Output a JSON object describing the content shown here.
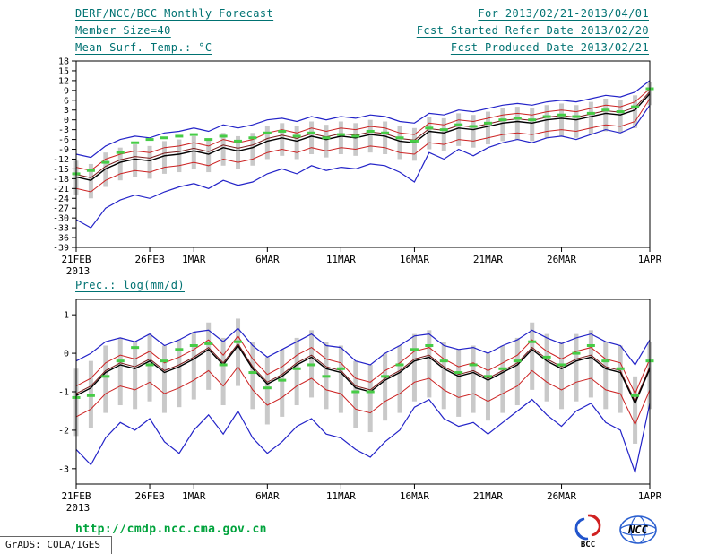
{
  "header": {
    "title": "DERF/NCC/BCC Monthly Forecast",
    "member_size": "Member Size=40",
    "temp_label": "Mean Surf. Temp.: °C",
    "for_range": "For 2013/02/21-2013/04/01",
    "refer_date": "Fcst Started Refer Date 2013/02/20",
    "produced_date": "Fcst Produced Date 2013/02/21"
  },
  "footer": {
    "url": "http://cmdp.ncc.cma.gov.cn",
    "grads_credit": "GrADS: COLA/IGES",
    "bcc_text": "BCC",
    "ncc_text": "NCC"
  },
  "colors": {
    "header_text": "#007272",
    "url_green": "#00a33c",
    "line_blue": "#2323c8",
    "line_red": "#cc2222",
    "line_maroon": "#7a1a1a",
    "line_black": "#000000",
    "obs_green": "#46cc46",
    "bar_gray": "#c9c9c9"
  },
  "chart_data": [
    {
      "type": "line",
      "title": "Mean Surf. Temp.: °C",
      "x_tick_labels": [
        "21FEB",
        "26FEB",
        "1MAR",
        "6MAR",
        "11MAR",
        "16MAR",
        "21MAR",
        "26MAR",
        "1APR"
      ],
      "x_tick_positions": [
        0,
        5,
        8,
        13,
        18,
        23,
        28,
        33,
        39
      ],
      "x_year_label": "2013",
      "n_points": 40,
      "ylim": [
        -39,
        18
      ],
      "y_ticks": [
        18,
        15,
        12,
        9,
        6,
        3,
        0,
        -3,
        -6,
        -9,
        -12,
        -15,
        -18,
        -21,
        -24,
        -27,
        -30,
        -33,
        -36,
        -39
      ],
      "bar_color": "#c9c9c9",
      "bars": {
        "name": "member-spread",
        "high": [
          -12.5,
          -13.5,
          -10,
          -8.5,
          -7.5,
          -8,
          -6.5,
          -6,
          -5,
          -6,
          -4,
          -5,
          -4,
          -2,
          -1,
          -2,
          -0.5,
          -1.5,
          -0.5,
          -1,
          0,
          -0.5,
          -2,
          -2.5,
          1,
          0.5,
          2,
          1.5,
          2.5,
          3.5,
          4,
          3.5,
          4.5,
          5,
          4.5,
          5.5,
          6.5,
          6,
          7.5,
          11.5
        ],
        "low": [
          -23,
          -24,
          -20.5,
          -18.5,
          -17.5,
          -18,
          -16.5,
          -16,
          -15,
          -16,
          -14,
          -15,
          -14,
          -12,
          -11,
          -12,
          -10.5,
          -11.5,
          -10.5,
          -11,
          -10,
          -10.5,
          -12,
          -12.5,
          -9,
          -9.5,
          -8,
          -8.5,
          -7.5,
          -6.5,
          -6,
          -6.5,
          -5.5,
          -5,
          -5.5,
          -4.5,
          -3.5,
          -4,
          -2.5,
          4.5
        ]
      },
      "series": [
        {
          "name": "ensemble-max",
          "color": "#2323c8",
          "width": 1.2,
          "values": [
            -10.5,
            -11.5,
            -8,
            -6,
            -5,
            -5.5,
            -4,
            -3.5,
            -2.5,
            -3.5,
            -1.5,
            -2.5,
            -1.5,
            0,
            0.5,
            -0.5,
            1,
            0,
            1,
            0.5,
            1.5,
            1,
            -0.5,
            -1,
            2,
            1.5,
            3,
            2.5,
            3.5,
            4.5,
            5,
            4.5,
            5.5,
            6,
            5.5,
            6.5,
            7.5,
            7,
            8.5,
            12
          ]
        },
        {
          "name": "upper-quartile",
          "color": "#cc2222",
          "width": 1,
          "values": [
            -14.5,
            -15.5,
            -12,
            -10.5,
            -9.5,
            -10,
            -8.5,
            -8,
            -7,
            -8,
            -6,
            -7,
            -6,
            -4,
            -3,
            -4,
            -2.5,
            -3.5,
            -2.5,
            -3,
            -2,
            -2.5,
            -4,
            -4.5,
            -1,
            -1.5,
            0,
            -0.5,
            0.5,
            1.5,
            2,
            1.5,
            2.5,
            3,
            2.5,
            3.5,
            4.5,
            4,
            5.5,
            9.5
          ]
        },
        {
          "name": "ensemble-median",
          "color": "#7a1a1a",
          "width": 1,
          "values": [
            -16.7,
            -17.7,
            -14.2,
            -12.2,
            -11.2,
            -11.7,
            -10.2,
            -9.7,
            -8.7,
            -9.7,
            -7.7,
            -8.7,
            -7.7,
            -5.7,
            -4.7,
            -5.7,
            -4.2,
            -5.2,
            -4.2,
            -4.7,
            -3.7,
            -4.2,
            -5.7,
            -6.2,
            -2.7,
            -3.2,
            -1.7,
            -2.2,
            -1.2,
            -0.2,
            0.3,
            -0.2,
            0.8,
            1.3,
            0.8,
            1.8,
            2.8,
            2.3,
            3.8,
            8.6
          ]
        },
        {
          "name": "ensemble-mean",
          "color": "#000000",
          "width": 1.4,
          "values": [
            -17.5,
            -18.5,
            -15,
            -13,
            -12,
            -12.5,
            -11,
            -10.5,
            -9.5,
            -10.5,
            -8.5,
            -9.5,
            -8.5,
            -6.5,
            -5.5,
            -6.5,
            -5,
            -6,
            -5,
            -5.5,
            -4.5,
            -5,
            -6.5,
            -7,
            -3.5,
            -4,
            -2.5,
            -3,
            -2,
            -1,
            -0.5,
            -1,
            0,
            0.5,
            0,
            1,
            2,
            1.5,
            3,
            8
          ]
        },
        {
          "name": "lower-quartile",
          "color": "#cc2222",
          "width": 1,
          "values": [
            -21,
            -22,
            -18.5,
            -16.5,
            -15.5,
            -16,
            -14.5,
            -14,
            -13,
            -14,
            -12,
            -13,
            -12,
            -10,
            -9,
            -10,
            -8.5,
            -9.5,
            -8.5,
            -9,
            -8,
            -8.5,
            -10,
            -10.5,
            -7,
            -7.5,
            -6,
            -6.5,
            -5.5,
            -4.5,
            -4,
            -4.5,
            -3.5,
            -3,
            -3.5,
            -2.5,
            -1.5,
            -2,
            -0.5,
            6.5
          ]
        },
        {
          "name": "ensemble-min",
          "color": "#2323c8",
          "width": 1.2,
          "values": [
            -30.5,
            -33,
            -27,
            -24.5,
            -23,
            -24,
            -22,
            -20.5,
            -19.5,
            -21,
            -18.5,
            -20,
            -19,
            -16.5,
            -15,
            -16.5,
            -14,
            -15.5,
            -14.5,
            -15,
            -13.5,
            -14,
            -16,
            -19,
            -10,
            -12,
            -9,
            -11,
            -8.5,
            -7,
            -6,
            -7,
            -5.5,
            -5,
            -6,
            -4.5,
            -3,
            -4,
            -2,
            4.5
          ]
        }
      ],
      "dashes": {
        "name": "observation",
        "color": "#46cc46",
        "values": [
          -16.5,
          -15.5,
          -13,
          -10,
          -7,
          -6,
          -5.5,
          -5,
          -4.5,
          -6,
          -5,
          -6.5,
          -5.5,
          -4,
          -3.5,
          -5,
          -4,
          -5.5,
          -4.5,
          -5,
          -3.5,
          -4,
          -5.5,
          -6.5,
          -2.5,
          -3,
          -1.5,
          -2,
          -1,
          0,
          0.5,
          0,
          1,
          1.5,
          1,
          2,
          3,
          2.5,
          4,
          9.5
        ]
      }
    },
    {
      "type": "line",
      "title": "Prec.: log(mm/d)",
      "x_tick_labels": [
        "21FEB",
        "26FEB",
        "1MAR",
        "6MAR",
        "11MAR",
        "16MAR",
        "21MAR",
        "26MAR",
        "1APR"
      ],
      "x_tick_positions": [
        0,
        5,
        8,
        13,
        18,
        23,
        28,
        33,
        39
      ],
      "x_year_label": "2013",
      "n_points": 40,
      "ylim": [
        -3.4,
        1.4
      ],
      "y_ticks": [
        1,
        0,
        -1,
        -2,
        -3
      ],
      "bar_color": "#c9c9c9",
      "bars": {
        "name": "member-spread",
        "high": [
          -0.4,
          -0.2,
          0.2,
          0.4,
          0.3,
          0.5,
          0.2,
          0.35,
          0.55,
          0.8,
          0.4,
          0.9,
          0.3,
          -0.1,
          0.1,
          0.4,
          0.6,
          0.3,
          0.2,
          -0.2,
          -0.3,
          0,
          0.2,
          0.5,
          0.6,
          0.3,
          0.1,
          0.2,
          0,
          0.2,
          0.4,
          0.8,
          0.5,
          0.3,
          0.5,
          0.6,
          0.3,
          0.2,
          -0.6,
          0.3
        ],
        "low": [
          -2.15,
          -1.95,
          -1.55,
          -1.35,
          -1.45,
          -1.25,
          -1.55,
          -1.4,
          -1.2,
          -0.95,
          -1.35,
          -0.85,
          -1.45,
          -1.85,
          -1.65,
          -1.35,
          -1.15,
          -1.45,
          -1.55,
          -1.95,
          -2.05,
          -1.75,
          -1.55,
          -1.25,
          -1.15,
          -1.45,
          -1.65,
          -1.55,
          -1.75,
          -1.55,
          -1.35,
          -0.95,
          -1.25,
          -1.45,
          -1.25,
          -1.15,
          -1.45,
          -1.55,
          -2.35,
          -1.45
        ]
      },
      "series": [
        {
          "name": "ensemble-max",
          "color": "#2323c8",
          "width": 1.2,
          "values": [
            -0.2,
            0,
            0.3,
            0.4,
            0.3,
            0.5,
            0.2,
            0.35,
            0.55,
            0.6,
            0.3,
            0.65,
            0.2,
            -0.1,
            0.1,
            0.3,
            0.5,
            0.2,
            0.15,
            -0.2,
            -0.3,
            0,
            0.2,
            0.45,
            0.5,
            0.2,
            0.1,
            0.15,
            0,
            0.2,
            0.35,
            0.6,
            0.4,
            0.25,
            0.4,
            0.5,
            0.3,
            0.2,
            -0.3,
            0.35
          ]
        },
        {
          "name": "upper-quartile",
          "color": "#cc2222",
          "width": 1,
          "values": [
            -0.85,
            -0.65,
            -0.25,
            -0.05,
            -0.15,
            0.05,
            -0.25,
            -0.1,
            0.1,
            0.35,
            -0.05,
            0.45,
            -0.15,
            -0.55,
            -0.35,
            -0.05,
            0.15,
            -0.15,
            -0.25,
            -0.65,
            -0.75,
            -0.45,
            -0.25,
            0.05,
            0.15,
            -0.15,
            -0.35,
            -0.25,
            -0.45,
            -0.25,
            -0.05,
            0.35,
            0.05,
            -0.15,
            0.05,
            0.15,
            -0.15,
            -0.25,
            -1.05,
            -0.15
          ]
        },
        {
          "name": "ensemble-median",
          "color": "#7a1a1a",
          "width": 1,
          "values": [
            -1.05,
            -0.85,
            -0.45,
            -0.25,
            -0.35,
            -0.15,
            -0.45,
            -0.3,
            -0.1,
            0.15,
            -0.25,
            0.25,
            -0.35,
            -0.75,
            -0.55,
            -0.25,
            -0.05,
            -0.35,
            -0.45,
            -0.85,
            -0.95,
            -0.65,
            -0.45,
            -0.15,
            -0.05,
            -0.35,
            -0.55,
            -0.45,
            -0.65,
            -0.45,
            -0.25,
            0.15,
            -0.15,
            -0.35,
            -0.15,
            -0.05,
            -0.35,
            -0.45,
            -1.25,
            -0.35
          ]
        },
        {
          "name": "ensemble-mean",
          "color": "#000000",
          "width": 1.4,
          "values": [
            -1.1,
            -0.9,
            -0.5,
            -0.3,
            -0.4,
            -0.2,
            -0.5,
            -0.35,
            -0.15,
            0.1,
            -0.3,
            0.2,
            -0.4,
            -0.8,
            -0.6,
            -0.3,
            -0.1,
            -0.4,
            -0.5,
            -0.9,
            -1,
            -0.7,
            -0.5,
            -0.2,
            -0.1,
            -0.4,
            -0.6,
            -0.5,
            -0.7,
            -0.5,
            -0.3,
            0.1,
            -0.2,
            -0.4,
            -0.2,
            -0.1,
            -0.4,
            -0.5,
            -1.3,
            -0.4
          ]
        },
        {
          "name": "lower-quartile",
          "color": "#cc2222",
          "width": 1,
          "values": [
            -1.65,
            -1.45,
            -1.05,
            -0.85,
            -0.95,
            -0.75,
            -1.05,
            -0.9,
            -0.7,
            -0.45,
            -0.85,
            -0.35,
            -0.95,
            -1.35,
            -1.15,
            -0.85,
            -0.65,
            -0.95,
            -1.05,
            -1.45,
            -1.55,
            -1.25,
            -1.05,
            -0.75,
            -0.65,
            -0.95,
            -1.15,
            -1.05,
            -1.25,
            -1.05,
            -0.85,
            -0.45,
            -0.75,
            -0.95,
            -0.75,
            -0.65,
            -0.95,
            -1.05,
            -1.85,
            -0.95
          ]
        },
        {
          "name": "ensemble-min",
          "color": "#2323c8",
          "width": 1.2,
          "values": [
            -2.5,
            -2.9,
            -2.2,
            -1.8,
            -2,
            -1.7,
            -2.3,
            -2.6,
            -2,
            -1.6,
            -2.1,
            -1.5,
            -2.2,
            -2.6,
            -2.3,
            -1.9,
            -1.7,
            -2.1,
            -2.2,
            -2.5,
            -2.7,
            -2.3,
            -2,
            -1.4,
            -1.2,
            -1.7,
            -1.9,
            -1.8,
            -2.1,
            -1.8,
            -1.5,
            -1.2,
            -1.6,
            -1.9,
            -1.5,
            -1.3,
            -1.8,
            -2,
            -3.1,
            -1.3
          ]
        }
      ],
      "dashes": {
        "name": "observation",
        "color": "#46cc46",
        "values": [
          -1.15,
          -1.1,
          -0.6,
          -0.2,
          0.15,
          -0.3,
          -0.2,
          0.1,
          0.2,
          0.25,
          -0.3,
          0.3,
          -0.5,
          -0.9,
          -0.7,
          -0.4,
          -0.3,
          -0.6,
          -0.4,
          -1,
          -1,
          -0.6,
          -0.3,
          0.1,
          0.2,
          -0.2,
          -0.5,
          -0.3,
          -0.6,
          -0.4,
          -0.2,
          0.3,
          -0.1,
          -0.3,
          0,
          0.2,
          -0.2,
          -0.4,
          -1.1,
          -0.2
        ]
      }
    }
  ]
}
